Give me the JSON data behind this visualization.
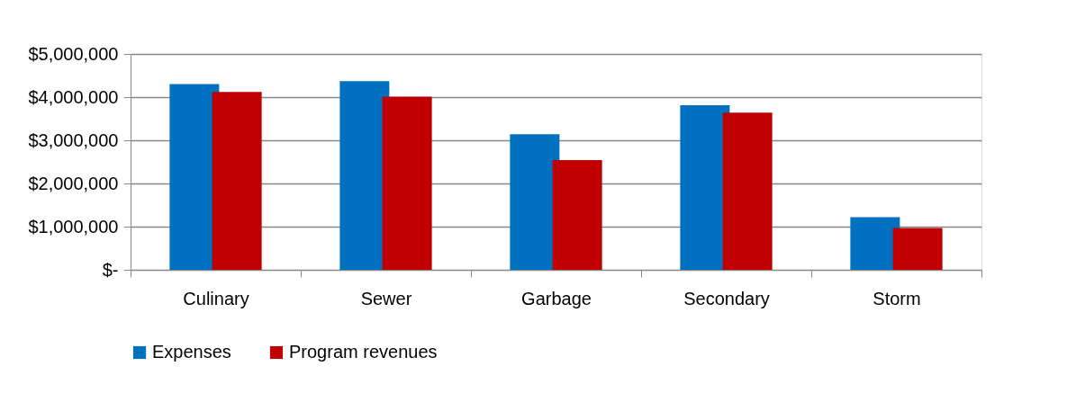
{
  "chart_data": {
    "type": "bar",
    "categories": [
      "Culinary",
      "Sewer",
      "Garbage",
      "Secondary",
      "Storm"
    ],
    "series": [
      {
        "name": "Expenses",
        "color": "#0070c0",
        "values": [
          4300000,
          4370000,
          3140000,
          3810000,
          1220000
        ]
      },
      {
        "name": "Program revenues",
        "color": "#c00000",
        "values": [
          4120000,
          4010000,
          2540000,
          3640000,
          970000
        ]
      }
    ],
    "ylim": [
      0,
      5000000
    ],
    "yticks": [
      {
        "value": 0,
        "label": "$-"
      },
      {
        "value": 1000000,
        "label": "$1,000,000"
      },
      {
        "value": 2000000,
        "label": "$2,000,000"
      },
      {
        "value": 3000000,
        "label": "$3,000,000"
      },
      {
        "value": 4000000,
        "label": "$4,000,000"
      },
      {
        "value": 5000000,
        "label": "$5,000,000"
      }
    ],
    "grid": "y",
    "legend": "bottom"
  }
}
